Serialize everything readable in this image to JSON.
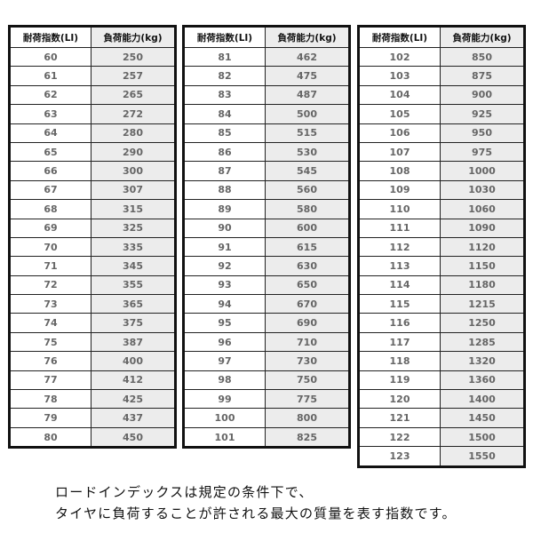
{
  "headers": {
    "index": "耐荷指数(LI)",
    "load": "負荷能力(kg)"
  },
  "tables": [
    {
      "rows": [
        [
          "60",
          "250"
        ],
        [
          "61",
          "257"
        ],
        [
          "62",
          "265"
        ],
        [
          "63",
          "272"
        ],
        [
          "64",
          "280"
        ],
        [
          "65",
          "290"
        ],
        [
          "66",
          "300"
        ],
        [
          "67",
          "307"
        ],
        [
          "68",
          "315"
        ],
        [
          "69",
          "325"
        ],
        [
          "70",
          "335"
        ],
        [
          "71",
          "345"
        ],
        [
          "72",
          "355"
        ],
        [
          "73",
          "365"
        ],
        [
          "74",
          "375"
        ],
        [
          "75",
          "387"
        ],
        [
          "76",
          "400"
        ],
        [
          "77",
          "412"
        ],
        [
          "78",
          "425"
        ],
        [
          "79",
          "437"
        ],
        [
          "80",
          "450"
        ]
      ]
    },
    {
      "rows": [
        [
          "81",
          "462"
        ],
        [
          "82",
          "475"
        ],
        [
          "83",
          "487"
        ],
        [
          "84",
          "500"
        ],
        [
          "85",
          "515"
        ],
        [
          "86",
          "530"
        ],
        [
          "87",
          "545"
        ],
        [
          "88",
          "560"
        ],
        [
          "89",
          "580"
        ],
        [
          "90",
          "600"
        ],
        [
          "91",
          "615"
        ],
        [
          "92",
          "630"
        ],
        [
          "93",
          "650"
        ],
        [
          "94",
          "670"
        ],
        [
          "95",
          "690"
        ],
        [
          "96",
          "710"
        ],
        [
          "97",
          "730"
        ],
        [
          "98",
          "750"
        ],
        [
          "99",
          "775"
        ],
        [
          "100",
          "800"
        ],
        [
          "101",
          "825"
        ]
      ]
    },
    {
      "rows": [
        [
          "102",
          "850"
        ],
        [
          "103",
          "875"
        ],
        [
          "104",
          "900"
        ],
        [
          "105",
          "925"
        ],
        [
          "106",
          "950"
        ],
        [
          "107",
          "975"
        ],
        [
          "108",
          "1000"
        ],
        [
          "109",
          "1030"
        ],
        [
          "110",
          "1060"
        ],
        [
          "111",
          "1090"
        ],
        [
          "112",
          "1120"
        ],
        [
          "113",
          "1150"
        ],
        [
          "114",
          "1180"
        ],
        [
          "115",
          "1215"
        ],
        [
          "116",
          "1250"
        ],
        [
          "117",
          "1285"
        ],
        [
          "118",
          "1320"
        ],
        [
          "119",
          "1360"
        ],
        [
          "120",
          "1400"
        ],
        [
          "121",
          "1450"
        ],
        [
          "122",
          "1500"
        ],
        [
          "123",
          "1550"
        ]
      ]
    }
  ],
  "note": {
    "line1": "ロードインデックスは規定の条件下で、",
    "line2": "タイヤに負荷することが許される最大の質量を表す指数です。"
  }
}
